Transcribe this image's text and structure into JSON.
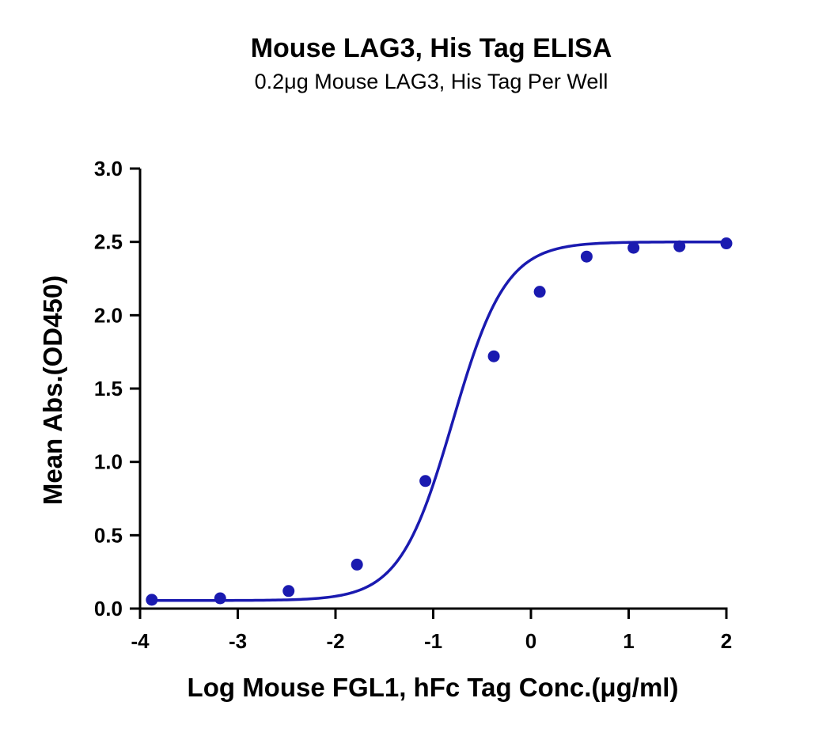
{
  "chart_data": {
    "type": "scatter",
    "title": "Mouse LAG3, His Tag ELISA",
    "subtitle": "0.2μg Mouse LAG3, His Tag Per Well",
    "xlabel": "Log Mouse FGL1, hFc Tag Conc.(μg/ml)",
    "ylabel": "Mean Abs.(OD450)",
    "xlim": [
      -4,
      2
    ],
    "ylim": [
      0,
      3
    ],
    "x_ticks": [
      "-4",
      "-3",
      "-2",
      "-1",
      "0",
      "1",
      "2"
    ],
    "y_ticks": [
      "0.0",
      "0.5",
      "1.0",
      "1.5",
      "2.0",
      "2.5",
      "3.0"
    ],
    "grid": false,
    "fit": "four-parameter logistic",
    "series": [
      {
        "color": "#1a1ab0",
        "x": [
          -3.88,
          -3.18,
          -2.48,
          -1.78,
          -1.08,
          -0.38,
          0.09,
          0.57,
          1.05,
          1.52,
          2.0
        ],
        "y": [
          0.06,
          0.07,
          0.12,
          0.3,
          0.87,
          1.72,
          2.16,
          2.4,
          2.46,
          2.47,
          2.49
        ]
      }
    ]
  }
}
